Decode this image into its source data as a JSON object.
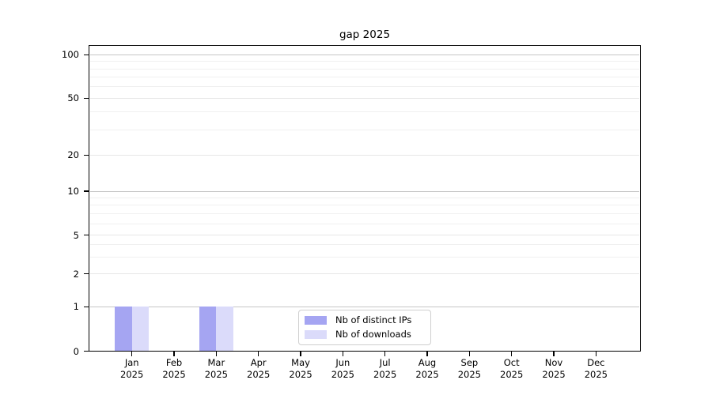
{
  "chart_data": {
    "type": "bar",
    "title": "gap 2025",
    "categories": [
      "Jan",
      "Feb",
      "Mar",
      "Apr",
      "May",
      "Jun",
      "Jul",
      "Aug",
      "Sep",
      "Oct",
      "Nov",
      "Dec"
    ],
    "year": "2025",
    "series": [
      {
        "name": "Nb of distinct IPs",
        "color": "#a5a5f2",
        "values": [
          1,
          0,
          1,
          0,
          0,
          0,
          0,
          0,
          0,
          0,
          0,
          0
        ]
      },
      {
        "name": "Nb of downloads",
        "color": "#dbdbfa",
        "values": [
          1,
          0,
          1,
          0,
          0,
          0,
          0,
          0,
          0,
          0,
          0,
          0
        ]
      }
    ],
    "yaxis": {
      "scale": "symlog",
      "ticks": [
        0,
        1,
        2,
        5,
        10,
        20,
        50,
        100
      ],
      "minor_ticks": [
        3,
        4,
        6,
        7,
        8,
        9,
        30,
        40,
        60,
        70,
        80,
        90
      ],
      "ylim": [
        0,
        118
      ]
    },
    "xlabel": "",
    "ylabel": "",
    "grid": true,
    "legend_position": "lower center",
    "colors": {
      "grid_major": "#c6c6c6",
      "grid_mid": "#e7e7e7",
      "grid_minor": "#f0f0f0",
      "axis": "#000000"
    }
  }
}
